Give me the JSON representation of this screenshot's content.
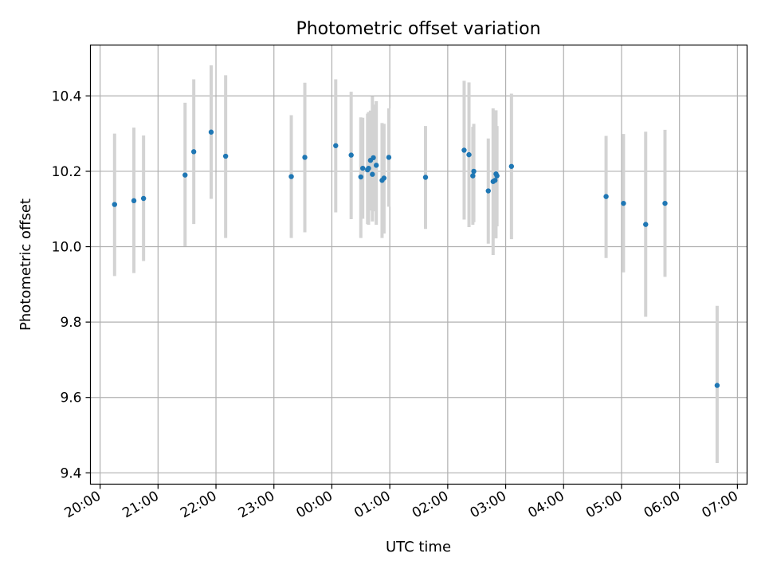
{
  "chart_data": {
    "type": "scatter",
    "title": "Photometric offset variation",
    "xlabel": "UTC time",
    "ylabel": "Photometric offset",
    "x_ticks": [
      "20:00",
      "21:00",
      "22:00",
      "23:00",
      "00:00",
      "01:00",
      "02:00",
      "03:00",
      "04:00",
      "05:00",
      "06:00",
      "07:00"
    ],
    "y_ticks": [
      "9.4",
      "9.6",
      "9.8",
      "10.0",
      "10.2",
      "10.4"
    ],
    "ylim": [
      9.37,
      10.535
    ],
    "xlim": [
      "19:50",
      "07:10"
    ],
    "grid": true,
    "colors": {
      "point": "#1f77b4",
      "errorbar": "#d3d3d3",
      "grid": "#b0b0b0"
    },
    "points": [
      {
        "x": "20:15",
        "y": 10.112,
        "lo": 9.922,
        "hi": 10.3
      },
      {
        "x": "20:35",
        "y": 10.122,
        "lo": 9.93,
        "hi": 10.316
      },
      {
        "x": "20:45",
        "y": 10.128,
        "lo": 9.962,
        "hi": 10.295
      },
      {
        "x": "21:28",
        "y": 10.19,
        "lo": 10.001,
        "hi": 10.382
      },
      {
        "x": "21:37",
        "y": 10.252,
        "lo": 10.06,
        "hi": 10.444
      },
      {
        "x": "21:55",
        "y": 10.304,
        "lo": 10.127,
        "hi": 10.481
      },
      {
        "x": "22:10",
        "y": 10.24,
        "lo": 10.023,
        "hi": 10.455
      },
      {
        "x": "23:18",
        "y": 10.186,
        "lo": 10.023,
        "hi": 10.349
      },
      {
        "x": "23:32",
        "y": 10.237,
        "lo": 10.038,
        "hi": 10.435
      },
      {
        "x": "00:04",
        "y": 10.268,
        "lo": 10.091,
        "hi": 10.444
      },
      {
        "x": "00:20",
        "y": 10.243,
        "lo": 10.073,
        "hi": 10.411
      },
      {
        "x": "00:30",
        "y": 10.185,
        "lo": 10.023,
        "hi": 10.343
      },
      {
        "x": "00:32",
        "y": 10.208,
        "lo": 10.074,
        "hi": 10.342
      },
      {
        "x": "00:37",
        "y": 10.204,
        "lo": 10.06,
        "hi": 10.353
      },
      {
        "x": "00:38",
        "y": 10.208,
        "lo": 10.058,
        "hi": 10.357
      },
      {
        "x": "00:40",
        "y": 10.229,
        "lo": 10.096,
        "hi": 10.361
      },
      {
        "x": "00:42",
        "y": 10.192,
        "lo": 10.067,
        "hi": 10.399
      },
      {
        "x": "00:43",
        "y": 10.236,
        "lo": 10.094,
        "hi": 10.377
      },
      {
        "x": "00:46",
        "y": 10.216,
        "lo": 10.058,
        "hi": 10.386
      },
      {
        "x": "00:52",
        "y": 10.176,
        "lo": 10.023,
        "hi": 10.328
      },
      {
        "x": "00:54",
        "y": 10.182,
        "lo": 10.035,
        "hi": 10.326
      },
      {
        "x": "00:59",
        "y": 10.237,
        "lo": 10.106,
        "hi": 10.367
      },
      {
        "x": "01:37",
        "y": 10.184,
        "lo": 10.047,
        "hi": 10.32
      },
      {
        "x": "02:17",
        "y": 10.256,
        "lo": 10.072,
        "hi": 10.44
      },
      {
        "x": "02:22",
        "y": 10.244,
        "lo": 10.052,
        "hi": 10.436
      },
      {
        "x": "02:26",
        "y": 10.188,
        "lo": 10.058,
        "hi": 10.318
      },
      {
        "x": "02:27",
        "y": 10.2,
        "lo": 10.065,
        "hi": 10.326
      },
      {
        "x": "02:42",
        "y": 10.148,
        "lo": 10.008,
        "hi": 10.287
      },
      {
        "x": "02:47",
        "y": 10.173,
        "lo": 9.978,
        "hi": 10.367
      },
      {
        "x": "02:49",
        "y": 10.176,
        "lo": 10.03,
        "hi": 10.312
      },
      {
        "x": "02:50",
        "y": 10.193,
        "lo": 10.022,
        "hi": 10.362
      },
      {
        "x": "02:51",
        "y": 10.188,
        "lo": 10.054,
        "hi": 10.32
      },
      {
        "x": "03:06",
        "y": 10.213,
        "lo": 10.02,
        "hi": 10.406
      },
      {
        "x": "04:44",
        "y": 10.133,
        "lo": 9.97,
        "hi": 10.294
      },
      {
        "x": "05:02",
        "y": 10.115,
        "lo": 9.932,
        "hi": 10.299
      },
      {
        "x": "05:25",
        "y": 10.059,
        "lo": 9.814,
        "hi": 10.305
      },
      {
        "x": "05:45",
        "y": 10.115,
        "lo": 9.92,
        "hi": 10.31
      },
      {
        "x": "06:39",
        "y": 9.632,
        "lo": 9.426,
        "hi": 9.843
      }
    ]
  }
}
